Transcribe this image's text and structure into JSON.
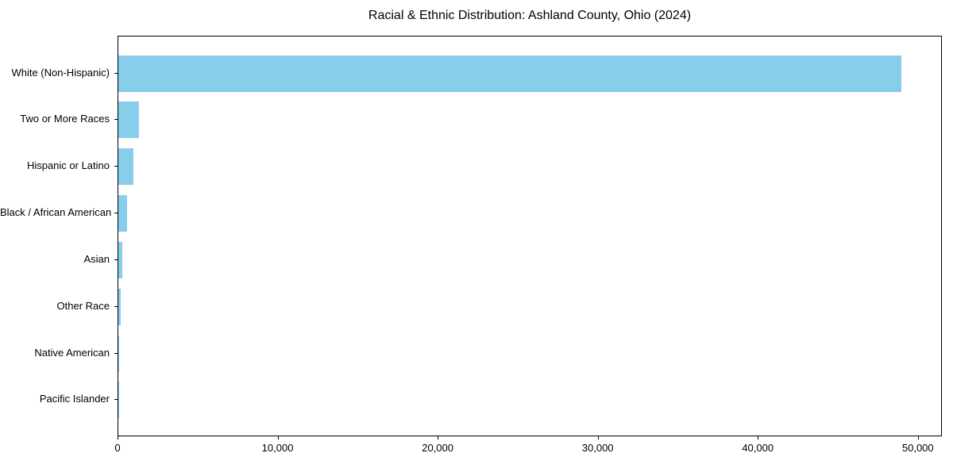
{
  "title": "Racial & Ethnic Distribution: Ashland County, Ohio (2024)",
  "chart_data": {
    "type": "bar",
    "orientation": "horizontal",
    "title": "Racial & Ethnic Distribution: Ashland County, Ohio (2024)",
    "categories": [
      "White (Non-Hispanic)",
      "Two or More Races",
      "Hispanic or Latino",
      "Black / African American",
      "Asian",
      "Other Race",
      "Native American",
      "Pacific Islander"
    ],
    "values": [
      49000,
      1300,
      950,
      550,
      240,
      160,
      40,
      10
    ],
    "bar_color": "#87CEEB",
    "xlabel": "",
    "ylabel": "",
    "xlim": [
      0,
      51500
    ],
    "x_ticks": [
      0,
      10000,
      20000,
      30000,
      40000,
      50000
    ],
    "x_tick_labels": [
      "0",
      "10,000",
      "20,000",
      "30,000",
      "40,000",
      "50,000"
    ],
    "grid": false,
    "legend": null
  }
}
